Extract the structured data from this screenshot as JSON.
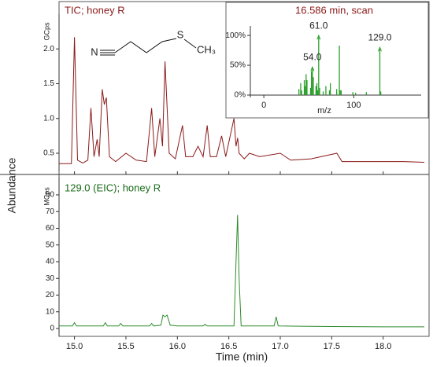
{
  "ylabel": "Abundance",
  "structure": {
    "atoms": [
      "N",
      "S",
      "CH₃"
    ]
  },
  "chart_data": [
    {
      "type": "line",
      "title": "TIC; honey R",
      "unit": "GCps",
      "color": "#8b1a1a",
      "xlim": [
        14.85,
        18.4
      ],
      "ylim": [
        0.24,
        2.5
      ],
      "yticks": [
        0.5,
        {
          "value": 1.0,
          "label": "1.0"
        },
        1.5,
        {
          "value": 2.0,
          "label": "2.0"
        }
      ],
      "x": [
        14.85,
        14.97,
        15.0,
        15.03,
        15.08,
        15.13,
        15.16,
        15.19,
        15.22,
        15.24,
        15.27,
        15.29,
        15.31,
        15.34,
        15.4,
        15.5,
        15.6,
        15.7,
        15.75,
        15.78,
        15.83,
        15.855,
        15.88,
        15.92,
        15.98,
        16.05,
        16.08,
        16.15,
        16.2,
        16.25,
        16.29,
        16.32,
        16.38,
        16.43,
        16.47,
        16.55,
        16.57,
        16.586,
        16.6,
        16.65,
        16.7,
        16.8,
        17.0,
        17.1,
        17.3,
        17.55,
        17.6,
        17.8,
        18.0,
        18.2,
        18.4
      ],
      "values": [
        0.35,
        0.35,
        2.17,
        0.4,
        0.36,
        0.4,
        1.15,
        0.45,
        0.7,
        0.45,
        1.42,
        1.2,
        1.3,
        0.45,
        0.38,
        0.5,
        0.4,
        0.38,
        1.15,
        0.45,
        1.0,
        0.6,
        1.82,
        0.5,
        0.42,
        0.9,
        0.45,
        0.45,
        0.6,
        0.45,
        0.9,
        0.45,
        0.45,
        0.75,
        0.45,
        1.0,
        0.6,
        0.72,
        0.5,
        0.42,
        0.5,
        0.45,
        0.5,
        0.4,
        0.42,
        0.5,
        0.38,
        0.38,
        0.38,
        0.38,
        0.37
      ]
    },
    {
      "type": "line",
      "title": "129.0 (EIC); honey R",
      "unit": "MCps",
      "color": "#2e8b2e",
      "xlabel": "Time (min)",
      "xlim": [
        14.85,
        18.4
      ],
      "ylim": [
        -4.7,
        90.8
      ],
      "xticks": [
        {
          "value": 15.0,
          "label": "15.0"
        },
        15.5,
        {
          "value": 16.0,
          "label": "16.0"
        },
        16.5,
        {
          "value": 17.0,
          "label": "17.0"
        },
        17.5,
        {
          "value": 18.0,
          "label": "18.0"
        }
      ],
      "yticks": [
        0,
        10,
        20,
        30,
        40,
        50,
        60,
        70,
        80
      ],
      "x": [
        14.85,
        14.98,
        15.0,
        15.02,
        15.28,
        15.3,
        15.32,
        15.43,
        15.45,
        15.47,
        15.73,
        15.75,
        15.77,
        15.84,
        15.86,
        15.88,
        15.9,
        15.93,
        16.0,
        16.25,
        16.27,
        16.29,
        16.55,
        16.57,
        16.585,
        16.6,
        16.62,
        16.94,
        16.96,
        16.98,
        17.5,
        18.0,
        18.4
      ],
      "values": [
        1.5,
        1.5,
        3.5,
        1.5,
        1.5,
        3.5,
        1.5,
        1.5,
        3,
        1.5,
        1.5,
        3,
        1.5,
        2,
        8,
        7,
        8,
        2,
        1.5,
        1.5,
        2.5,
        1.5,
        1.5,
        40,
        68,
        30,
        1.5,
        1.5,
        7,
        1.5,
        1.2,
        1,
        1
      ]
    },
    {
      "type": "stem",
      "title": "16.586 min, scan",
      "xlabel": "m/z",
      "color": "#2ca02c",
      "xlim": [
        -15,
        175
      ],
      "ylim": [
        -4,
        116
      ],
      "xticks": [
        0,
        100
      ],
      "yticks": [
        {
          "value": 0,
          "label": "0%"
        },
        {
          "value": 50,
          "label": "50%"
        },
        {
          "value": 100,
          "label": "100%"
        }
      ],
      "x": [
        39,
        41,
        42,
        45,
        46,
        47,
        48,
        52,
        53,
        54,
        55,
        58,
        59,
        60,
        61,
        62,
        66,
        69,
        73,
        74,
        81,
        84,
        85,
        86,
        99,
        102,
        114,
        129,
        130
      ],
      "values": [
        10,
        20,
        8,
        25,
        15,
        35,
        25,
        12,
        40,
        47,
        30,
        15,
        20,
        8,
        100,
        12,
        6,
        15,
        8,
        20,
        10,
        83,
        8,
        8,
        5,
        4,
        5,
        80,
        6
      ],
      "annotations": [
        {
          "x": 54,
          "label": "54.0"
        },
        {
          "x": 61,
          "label": "61.0"
        },
        {
          "x": 129,
          "label": "129.0"
        }
      ]
    }
  ]
}
